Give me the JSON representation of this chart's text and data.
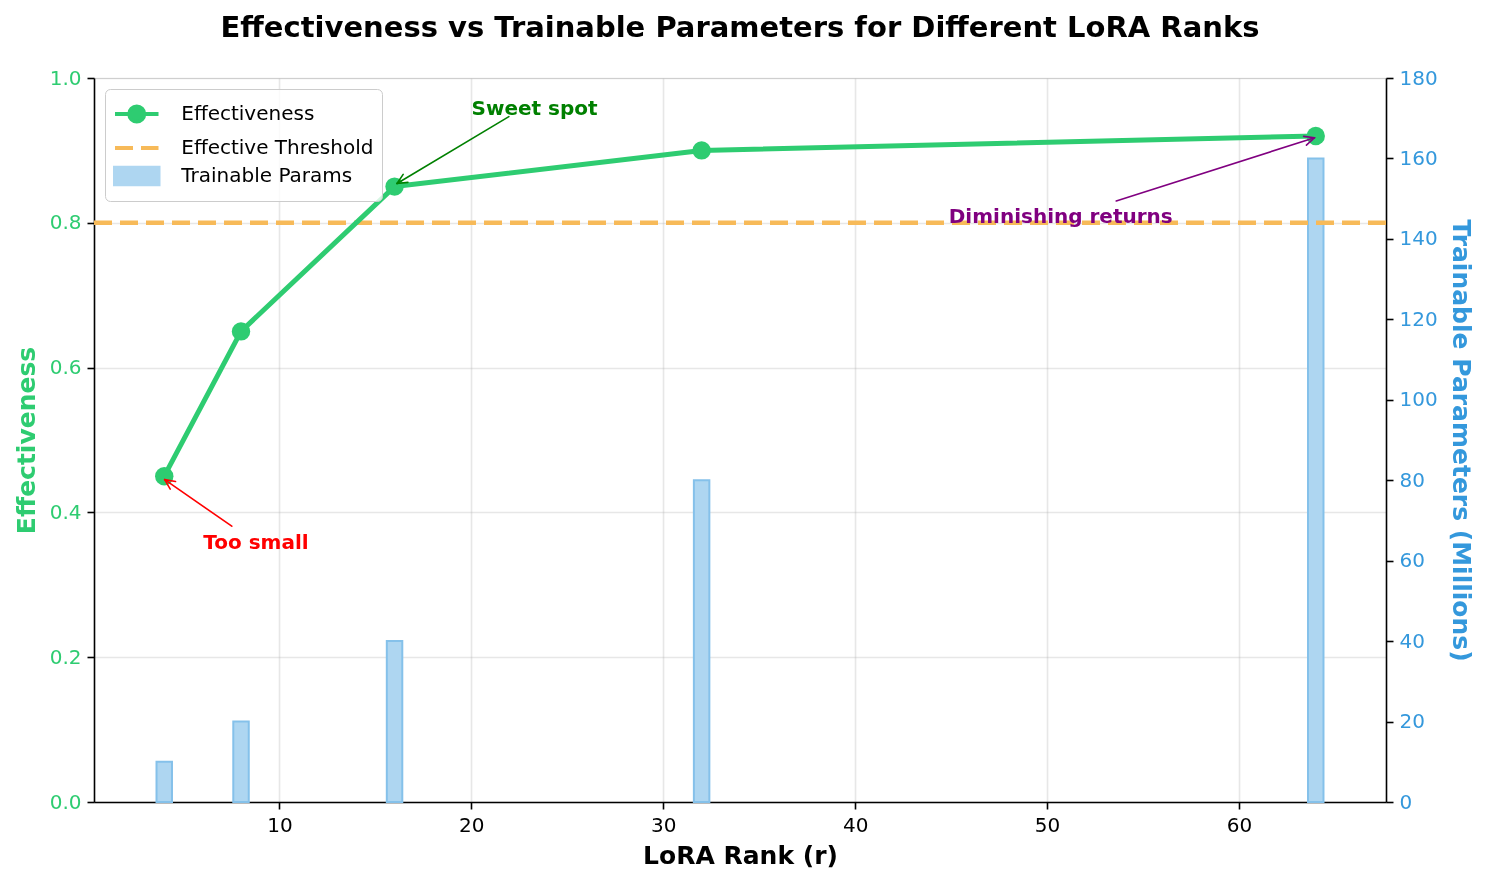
{
  "chart_data": {
    "type": "line",
    "title": "Effectiveness vs Trainable Parameters for Different LoRA Ranks",
    "xlabel": "LoRA Rank (r)",
    "ylabel": "Effectiveness",
    "y2label": "Trainable Parameters (Millions)",
    "x": [
      4,
      8,
      16,
      32,
      64
    ],
    "series": [
      {
        "name": "Effectiveness",
        "color": "#2ecc71",
        "values": [
          0.45,
          0.65,
          0.85,
          0.9,
          0.92
        ]
      },
      {
        "name": "Trainable Params",
        "type": "bar",
        "axis": "y2",
        "color": "#aed6f1",
        "values": [
          10,
          20,
          40,
          80,
          160
        ]
      }
    ],
    "xlim": [
      0.6,
      67.4
    ],
    "xticks": [
      10,
      20,
      30,
      40,
      50,
      60
    ],
    "ylim": [
      0,
      1
    ],
    "yticks": [
      {
        "value": 0,
        "label": "0.0"
      },
      0.2,
      0.4,
      0.6,
      0.8,
      {
        "value": 1,
        "label": "1.0"
      }
    ],
    "y2lim": [
      0,
      180
    ],
    "y2ticks": [
      0,
      20,
      40,
      60,
      80,
      100,
      120,
      140,
      160,
      180
    ],
    "ref_lines": [
      {
        "axis": "y",
        "value": 0.8,
        "label": "Effective Threshold",
        "color": "#f7ba59",
        "line_style": "dashed"
      }
    ],
    "annotations": [
      {
        "text": "Too small",
        "x": 4,
        "y": 0.45
      },
      {
        "text": "Sweet spot",
        "x": 16,
        "y": 0.85
      },
      {
        "text": "Diminishing returns",
        "x": 64,
        "y": 0.92
      }
    ],
    "grid": true,
    "legend": "top left",
    "marker": "circle",
    "line_style": "solid"
  }
}
